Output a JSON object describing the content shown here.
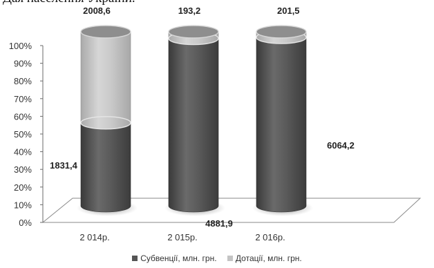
{
  "header": {
    "cut_title": "Дая населення України."
  },
  "chart_data": {
    "type": "bar",
    "stacked": "percent",
    "style": "3d-cylinder",
    "categories": [
      "2 014р.",
      "2 015р.",
      "2 016р."
    ],
    "series": [
      {
        "name": "Субвенції, млн. грн.",
        "values": [
          1831.4,
          4881.9,
          6064.2
        ],
        "labels": [
          "1831,4",
          "4881,9",
          "6064,2"
        ],
        "color": "#555555"
      },
      {
        "name": "Дотації, млн. грн.",
        "values": [
          2008.6,
          193.2,
          201.5
        ],
        "labels": [
          "2008,6",
          "193,2",
          "201,5"
        ],
        "color": "#c4c4c4"
      }
    ],
    "title": "",
    "xlabel": "",
    "ylabel": "",
    "ylim": [
      0,
      100
    ],
    "yticks": [
      "0%",
      "10%",
      "20%",
      "30%",
      "40%",
      "50%",
      "60%",
      "70%",
      "80%",
      "90%",
      "100%"
    ],
    "grid": false,
    "legend": "bottom"
  }
}
